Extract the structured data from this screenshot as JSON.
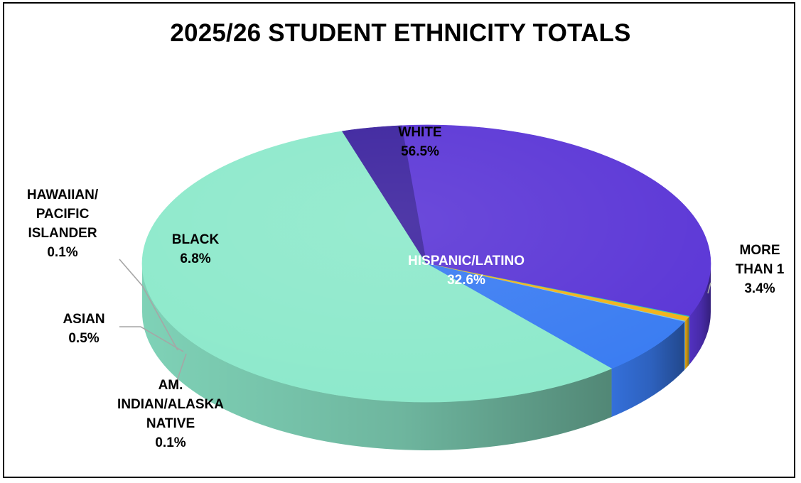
{
  "chart_data": {
    "type": "pie",
    "title": "2025/26 STUDENT ETHNICITY TOTALS",
    "slices": [
      {
        "name": "HISPANIC/LATINO",
        "label_lines": [
          "HISPANIC/LATINO"
        ],
        "value": 32.6,
        "pct_label": "32.6%",
        "color": "#5b36d6",
        "label_color": "#ffffff"
      },
      {
        "name": "AM. INDIAN/ALASKA NATIVE",
        "label_lines": [
          "AM.",
          "INDIAN/ALASKA",
          "NATIVE"
        ],
        "value": 0.1,
        "pct_label": "0.1%",
        "color": "#2ec4b6",
        "label_color": "#000000"
      },
      {
        "name": "ASIAN",
        "label_lines": [
          "ASIAN"
        ],
        "value": 0.5,
        "pct_label": "0.5%",
        "color": "#f2b31b",
        "label_color": "#000000"
      },
      {
        "name": "HAWAIIAN/PACIFIC ISLANDER",
        "label_lines": [
          "HAWAIIAN/",
          "PACIFIC",
          "ISLANDER"
        ],
        "value": 0.1,
        "pct_label": "0.1%",
        "color": "#7fc7e8",
        "label_color": "#000000"
      },
      {
        "name": "BLACK",
        "label_lines": [
          "BLACK"
        ],
        "value": 6.8,
        "pct_label": "6.8%",
        "color": "#3a7cf2",
        "label_color": "#000000"
      },
      {
        "name": "WHITE",
        "label_lines": [
          "WHITE"
        ],
        "value": 56.5,
        "pct_label": "56.5%",
        "color": "#8de9cb",
        "label_color": "#000000"
      },
      {
        "name": "MORE THAN 1",
        "label_lines": [
          "MORE",
          "THAN 1"
        ],
        "value": 3.4,
        "pct_label": "3.4%",
        "color": "#3c239e",
        "label_color": "#000000"
      }
    ],
    "legend": "none",
    "style": "3d-pie"
  }
}
